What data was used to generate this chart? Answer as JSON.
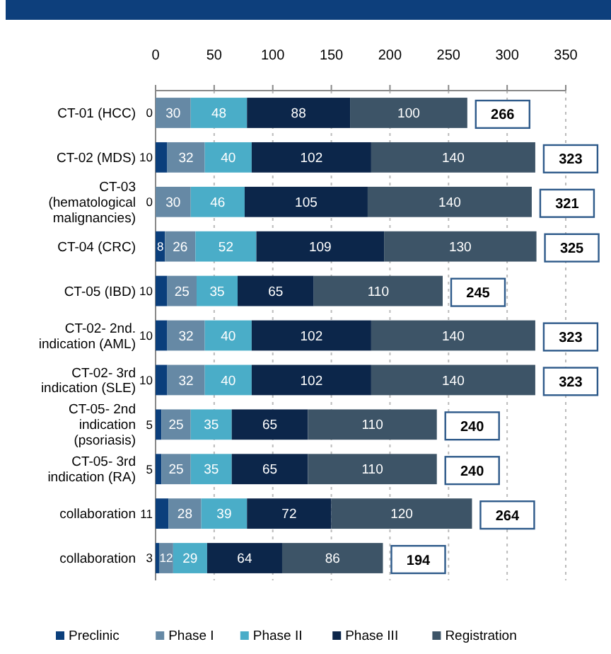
{
  "chart_data": {
    "type": "bar",
    "orientation": "horizontal",
    "stacked": true,
    "categories": [
      "CT-01 (HCC)",
      "CT-02 (MDS)",
      "CT-03 (hematological malignancies)",
      "CT-04 (CRC)",
      "CT-05 (IBD)",
      "CT-02- 2nd. indication (AML)",
      "CT-02- 3rd indication (SLE)",
      "CT-05- 2nd indication (psoriasis)",
      "CT-05- 3rd indication (RA)",
      "collaboration",
      "collaboration"
    ],
    "series": [
      {
        "name": "Preclinic",
        "color": "#0b3f7c",
        "values": [
          null,
          10,
          null,
          8,
          10,
          10,
          10,
          5,
          5,
          11,
          3
        ]
      },
      {
        "name": "Phase I",
        "color": "#6689a5",
        "values": [
          30,
          32,
          30,
          26,
          25,
          32,
          32,
          25,
          25,
          28,
          12
        ]
      },
      {
        "name": "Phase II",
        "color": "#4aadc8",
        "values": [
          48,
          40,
          46,
          52,
          35,
          40,
          40,
          35,
          35,
          39,
          29
        ]
      },
      {
        "name": "Phase III",
        "color": "#0c264a",
        "values": [
          88,
          102,
          105,
          109,
          65,
          102,
          102,
          65,
          65,
          72,
          64
        ]
      },
      {
        "name": "Registration",
        "color": "#3d5467",
        "values": [
          100,
          140,
          140,
          130,
          110,
          140,
          140,
          110,
          110,
          120,
          86
        ]
      }
    ],
    "xlim": [
      0,
      350
    ],
    "xticks": [
      0,
      50,
      100,
      150,
      200,
      250,
      300,
      350
    ],
    "annotations": [
      {
        "text": "0",
        "x": 0,
        "y": "CT-01 (HCC)"
      },
      {
        "text": "0",
        "x": 0,
        "y": "CT-03 (hematological malignancies)"
      },
      {
        "text": "266",
        "x": 266,
        "y": "CT-01 (HCC)"
      },
      {
        "text": "323",
        "x": 324,
        "y": "CT-02 (MDS)"
      },
      {
        "text": "321",
        "x": 321,
        "y": "CT-03 (hematological malignancies)"
      },
      {
        "text": "325",
        "x": 325,
        "y": "CT-04 (CRC)"
      },
      {
        "text": "245",
        "x": 245,
        "y": "CT-05 (IBD)"
      },
      {
        "text": "323",
        "x": 324,
        "y": "CT-02- 2nd. indication (AML)"
      },
      {
        "text": "323",
        "x": 324,
        "y": "CT-02- 3rd indication (SLE)"
      },
      {
        "text": "240",
        "x": 240,
        "y": "CT-05- 2nd indication (psoriasis)"
      },
      {
        "text": "240",
        "x": 240,
        "y": "CT-05- 3rd indication (RA)"
      },
      {
        "text": "264",
        "x": 270,
        "y": "collaboration"
      },
      {
        "text": "194",
        "x": 194,
        "y": "collaboration"
      }
    ],
    "data_labels": true,
    "grid": "x",
    "legend": "bottom"
  }
}
